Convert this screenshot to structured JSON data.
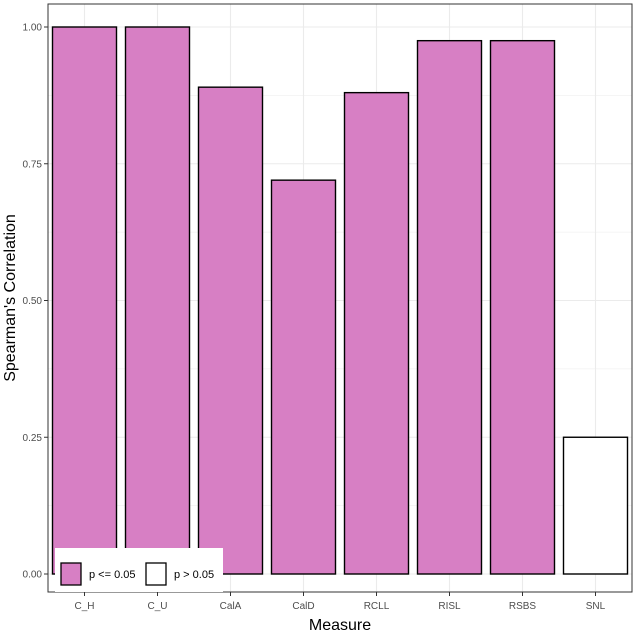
{
  "chart_data": {
    "type": "bar",
    "xlabel": "Measure",
    "ylabel": "Spearman's Correlation",
    "ylim": [
      0,
      1.0
    ],
    "yticks": [
      0.0,
      0.25,
      0.5,
      0.75,
      1.0
    ],
    "ytick_labels": [
      "0.00",
      "0.25",
      "0.50",
      "0.75",
      "1.00"
    ],
    "categories": [
      "C_H",
      "C_U",
      "CalA",
      "CalD",
      "RCLL",
      "RISL",
      "RSBS",
      "SNL"
    ],
    "values": [
      1.0,
      1.0,
      0.89,
      0.72,
      0.88,
      0.975,
      0.975,
      0.25
    ],
    "significance": [
      "p <= 0.05",
      "p <= 0.05",
      "p <= 0.05",
      "p <= 0.05",
      "p <= 0.05",
      "p <= 0.05",
      "p <= 0.05",
      "p > 0.05"
    ],
    "grid": true,
    "legend_position": "bottom-left",
    "legend": [
      {
        "label": "p <= 0.05",
        "color": "#d77fc4"
      },
      {
        "label": "p > 0.05",
        "color": "#ffffff"
      }
    ],
    "colors": {
      "significant": "#d77fc4",
      "not_significant": "#ffffff",
      "bar_outline": "#000000",
      "grid": "#ebebeb",
      "panel_border": "#333333"
    }
  }
}
